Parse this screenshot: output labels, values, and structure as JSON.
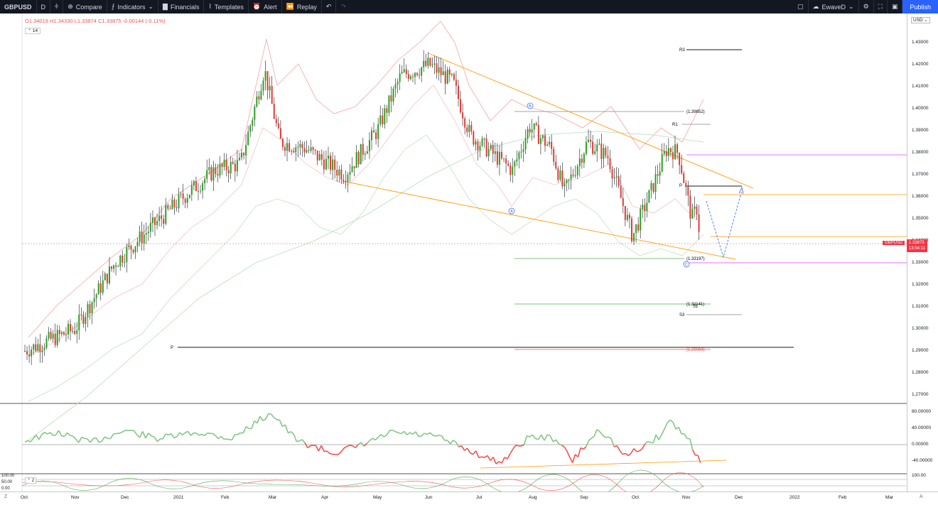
{
  "toolbar": {
    "symbol": "GBPUSD",
    "interval": "D",
    "compare": "Compare",
    "indicators": "Indicators",
    "financials": "Financials",
    "templates": "Templates",
    "alert": "Alert",
    "replay": "Replay",
    "user": "EwaveD",
    "publish": "Publish"
  },
  "legend": {
    "o": "O1.34019",
    "h": "H1.34330",
    "l": "L1.33874",
    "c": "C1.33875",
    "chg": "-0.00144 (-0.11%)",
    "badge": "14"
  },
  "price_axis": {
    "currency": "USD",
    "ticks": [
      "1.43000",
      "1.42000",
      "1.41000",
      "1.40000",
      "1.39000",
      "1.38000",
      "1.37000",
      "1.36000",
      "1.35000",
      "1.34000",
      "1.33000",
      "1.32000",
      "1.31000",
      "1.30000",
      "1.29000",
      "1.28000",
      "1.27000"
    ],
    "last_symbol": "GBPUSD",
    "last_price": "1.33875",
    "countdown": "13:54:11"
  },
  "osc_axis": {
    "ticks": [
      "80.00000",
      "40.00000",
      "0.00000",
      "-40.00000"
    ]
  },
  "stoch_axis": {
    "left_ticks": [
      "100.00",
      "50.00",
      "0.00"
    ],
    "right_tick": "100.00",
    "badge": "2"
  },
  "time_axis": {
    "labels": [
      "Oct",
      "Nov",
      "Dec",
      "2021",
      "Feb",
      "Mar",
      "Apr",
      "May",
      "Jun",
      "Jul",
      "Aug",
      "Sep",
      "Oct",
      "Nov",
      "Dec",
      "2022",
      "Feb",
      "Mar"
    ],
    "z_btn": "Z",
    "a_btn": "A"
  },
  "annotations": {
    "fib_top": "(1.39852)",
    "fib_mid": "(1.33197)",
    "fib_low": "(1.31141)",
    "fib_red": "(1.29084)",
    "r3": "R3",
    "r1": "R1",
    "p_left": "P",
    "p_right": "P",
    "s1": "S1",
    "s3": "S3",
    "wave_a": "A",
    "wave_b": "B",
    "wave_c": "C"
  },
  "colors": {
    "up": "#089981",
    "up_bright": "#26a31a",
    "down": "#e53935",
    "wedge": "#ff9800",
    "accent": "#2962ff"
  },
  "chart_data": [
    {
      "type": "candlestick",
      "symbol": "GBPUSD",
      "interval": "D",
      "ylim": [
        1.265,
        1.438
      ],
      "x_range": [
        "2020-10",
        "2022-03"
      ],
      "last": {
        "open": 1.34019,
        "high": 1.3433,
        "low": 1.33874,
        "close": 1.33875,
        "change": -0.00144,
        "change_pct": -0.11
      },
      "path": [
        [
          "2020-10-01",
          1.29
        ],
        [
          "2020-11-01",
          1.3
        ],
        [
          "2020-11-25",
          1.33
        ],
        [
          "2020-12-15",
          1.345
        ],
        [
          "2021-01-05",
          1.36
        ],
        [
          "2021-01-25",
          1.372
        ],
        [
          "2021-02-10",
          1.375
        ],
        [
          "2021-02-24",
          1.418
        ],
        [
          "2021-03-05",
          1.385
        ],
        [
          "2021-03-20",
          1.382
        ],
        [
          "2021-04-12",
          1.37
        ],
        [
          "2021-05-01",
          1.39
        ],
        [
          "2021-05-15",
          1.415
        ],
        [
          "2021-06-01",
          1.42
        ],
        [
          "2021-06-15",
          1.412
        ],
        [
          "2021-06-25",
          1.388
        ],
        [
          "2021-07-20",
          1.372
        ],
        [
          "2021-07-30",
          1.392
        ],
        [
          "2021-08-12",
          1.382
        ],
        [
          "2021-08-20",
          1.362
        ],
        [
          "2021-09-03",
          1.385
        ],
        [
          "2021-09-15",
          1.378
        ],
        [
          "2021-09-29",
          1.342
        ],
        [
          "2021-10-10",
          1.362
        ],
        [
          "2021-10-20",
          1.382
        ],
        [
          "2021-10-27",
          1.38
        ],
        [
          "2021-11-04",
          1.35
        ],
        [
          "2021-11-07",
          1.355
        ],
        [
          "2021-11-09",
          1.3387
        ]
      ]
    },
    {
      "type": "line",
      "name": "oscillator",
      "ylim": [
        -60,
        85
      ],
      "points": [
        [
          "2020-10-01",
          10
        ],
        [
          "2020-10-20",
          30
        ],
        [
          "2020-11-10",
          5
        ],
        [
          "2020-12-01",
          35
        ],
        [
          "2020-12-20",
          15
        ],
        [
          "2021-01-15",
          30
        ],
        [
          "2021-02-05",
          15
        ],
        [
          "2021-02-28",
          80
        ],
        [
          "2021-03-15",
          10
        ],
        [
          "2021-04-05",
          -20
        ],
        [
          "2021-04-20",
          -5
        ],
        [
          "2021-05-10",
          30
        ],
        [
          "2021-06-05",
          20
        ],
        [
          "2021-06-25",
          -15
        ],
        [
          "2021-07-12",
          -45
        ],
        [
          "2021-07-30",
          20
        ],
        [
          "2021-08-15",
          15
        ],
        [
          "2021-08-25",
          -40
        ],
        [
          "2021-09-10",
          40
        ],
        [
          "2021-09-25",
          -30
        ],
        [
          "2021-10-15",
          20
        ],
        [
          "2021-10-22",
          60
        ],
        [
          "2021-11-03",
          10
        ],
        [
          "2021-11-09",
          -45
        ]
      ]
    }
  ]
}
